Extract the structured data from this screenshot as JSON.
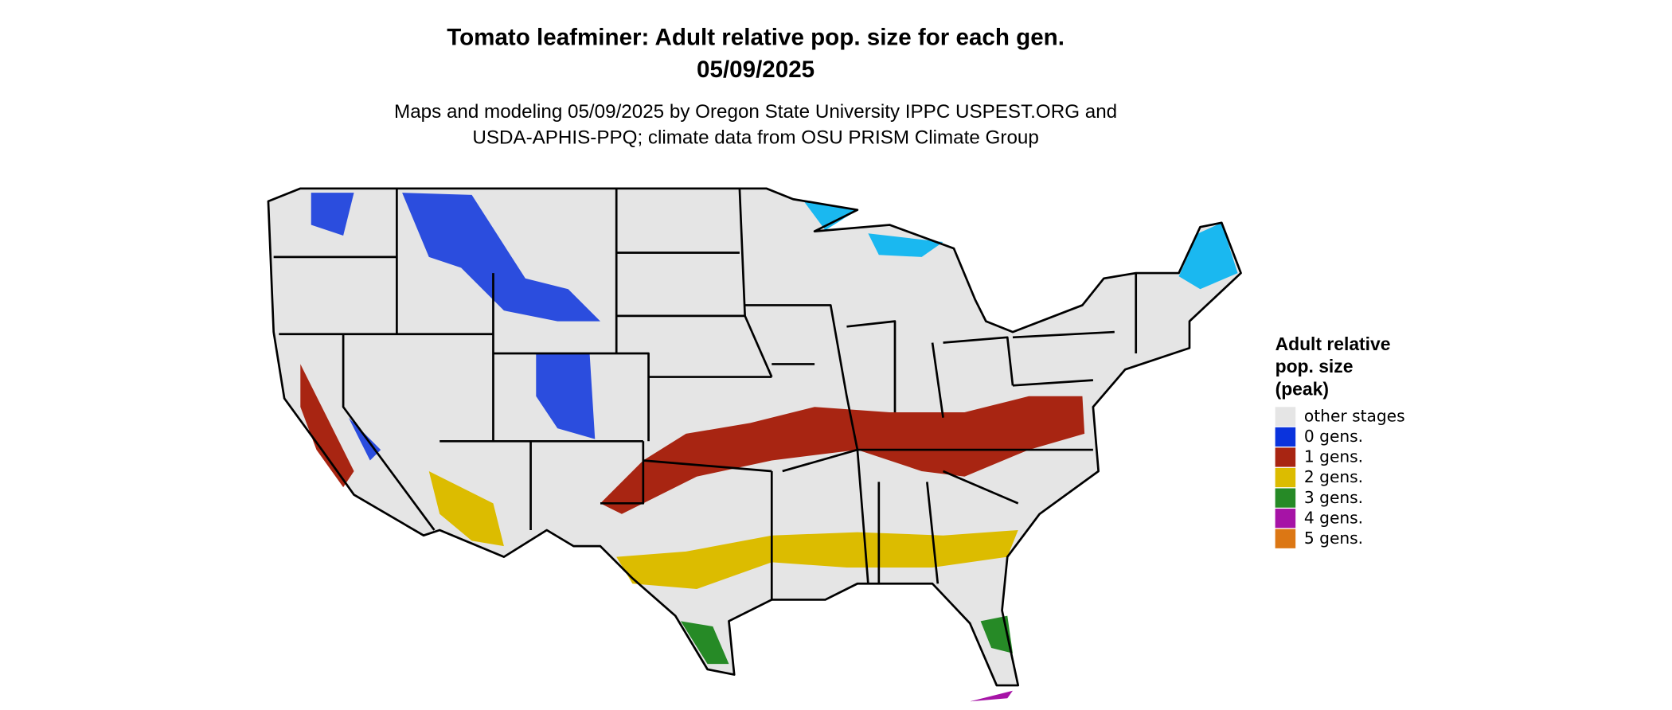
{
  "title": [
    "Tomato leafminer: Adult relative pop. size for each gen.",
    "05/09/2025"
  ],
  "subtitle": [
    "Maps and modeling 05/09/2025 by Oregon State University IPPC USPEST.ORG and",
    "USDA-APHIS-PPQ; climate data from OSU PRISM Climate Group"
  ],
  "legend": {
    "title": [
      "Adult relative",
      "pop. size",
      "(peak)"
    ],
    "items": [
      {
        "label": "other stages",
        "color": "#e5e5e5"
      },
      {
        "label": "0 gens.",
        "color": "#0a33dd"
      },
      {
        "label": "1 gens.",
        "color": "#a82512"
      },
      {
        "label": "2 gens.",
        "color": "#dcbc00"
      },
      {
        "label": "3 gens.",
        "color": "#268a26"
      },
      {
        "label": "4 gens.",
        "color": "#a613a6"
      },
      {
        "label": "5 gens.",
        "color": "#dc7714"
      }
    ]
  }
}
